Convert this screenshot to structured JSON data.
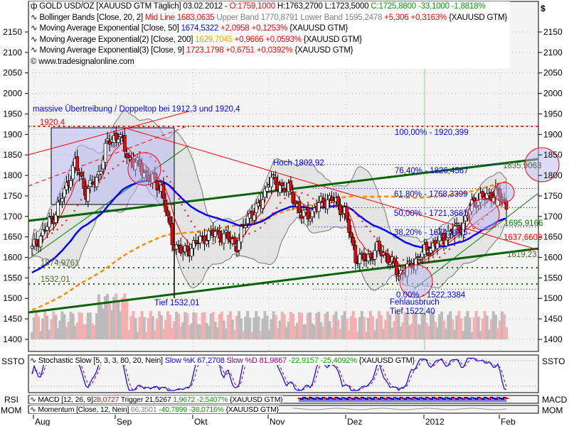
{
  "axis": {
    "currency": "$",
    "y_ticks": [
      1400,
      1450,
      1500,
      1550,
      1600,
      1650,
      1700,
      1750,
      1800,
      1850,
      1900,
      1950,
      2000,
      2050,
      2100,
      2150
    ],
    "x_ticks": [
      "Aug",
      "Sep",
      "Okt",
      "Nov",
      "Dez",
      "2012",
      "Feb"
    ]
  },
  "legend": {
    "l1": {
      "name": "GOLD USD/OZ [XAUUSD GTM  Täglich] 03.02.2012 -",
      "o": "O:1759,1000",
      "h": "H:1763,2700",
      "l": "L:1723,5000",
      "c": "C:1725,8800 -33,1000 -1,8818%"
    },
    "l2": {
      "name": "Bollinger Bands [Close, 20, 2]",
      "mid": "Mid Line 1683,0635",
      "upper": "Upper Band 1770,8791",
      "lower": "Lower Band 1595,2478",
      "chg": "+5,306 +0,3163%",
      "sym": "{XAUUSD GTM}"
    },
    "l3": {
      "name": "Moving Average Exponential [Close, 50]",
      "val": "1674,5322",
      "chg": "+2,0958 +0,1253%",
      "sym": "{XAUUSD GTM}"
    },
    "l4": {
      "name": "Moving Average Exponential(2) [Close, 200]",
      "val": "1629,7045",
      "chg": "+0,9666 +0,0593%",
      "sym": "{XAUUSD GTM}"
    },
    "l5": {
      "name": "Moving Average Exponential(3) [Close, 9]",
      "val": "1723,1798",
      "chg": "+0,6751 +0,0392%",
      "sym": "{XAUUSD GTM}"
    },
    "copyright": "© www.tradesignalonline.com"
  },
  "annotations": {
    "headline": "massive Übertreibung / Doppeltop bei 1912,3 und 1920,4",
    "top": "1920,4",
    "hoch": "Hoch 1802,92",
    "tief": "Tief 1532,01",
    "sup1": "1574,9761",
    "sup2": "1532,01",
    "fehl1": "Fehlausbruch",
    "fehl2": "Tief 1522,40",
    "fib100": "100,00% - 1920,399",
    "fib764": "76,40% - 1826,4567",
    "fib618": "61,80% - 1768,3399",
    "fib50": "50,00% - 1721,3687",
    "fib382": "38,20% - 1674,3875",
    "fib0": "0,00% - 1522,3384",
    "r1": "1835,9063",
    "r2": "1695,9166",
    "r3": "1637,6609",
    "r4": "1619,23"
  },
  "stoch": {
    "label": "SSTO",
    "name": "Stochastic Slow [5, 3, 3, 80, 20, Nein]",
    "k": "Slow %K 67,2708",
    "d": "Slow %D 81,9867",
    "chg": "-22,9157 -25,4092%",
    "sym": "{XAUUSD GTM}"
  },
  "macd": {
    "left": "RSI",
    "right": "MACD",
    "name": "MACD [12, 26, 9]",
    "val": "28,0727",
    "trig": "Trigger 21,5267",
    "chg": "1,9672 -2,5407%",
    "sym": "{XAUUSD GTM}"
  },
  "mom": {
    "label": "MOM",
    "name": "Momentum [Close, 12, Nein]",
    "val": "66,3501",
    "chg": "-40,7899 -38,0716%",
    "sym": "{XAUUSD GTM}"
  },
  "chart_data": {
    "type": "candlestick",
    "title": "GOLD USD/OZ [XAUUSD GTM Täglich]",
    "ylim": [
      1380,
      2190
    ],
    "weekly_closes": [
      1620,
      1660,
      1700,
      1760,
      1830,
      1760,
      1790,
      1880,
      1900,
      1840,
      1820,
      1790,
      1770,
      1640,
      1610,
      1630,
      1650,
      1660,
      1650,
      1630,
      1700,
      1720,
      1790,
      1775,
      1760,
      1700,
      1710,
      1740,
      1740,
      1710,
      1600,
      1595,
      1620,
      1600,
      1560,
      1575,
      1605,
      1625,
      1645,
      1665,
      1680,
      1740,
      1745,
      1760,
      1726
    ],
    "colors": {
      "ema50": "#0000ff",
      "ema200": "#ff8c00",
      "ema9": "#ff0000",
      "trend": "#006400"
    }
  }
}
